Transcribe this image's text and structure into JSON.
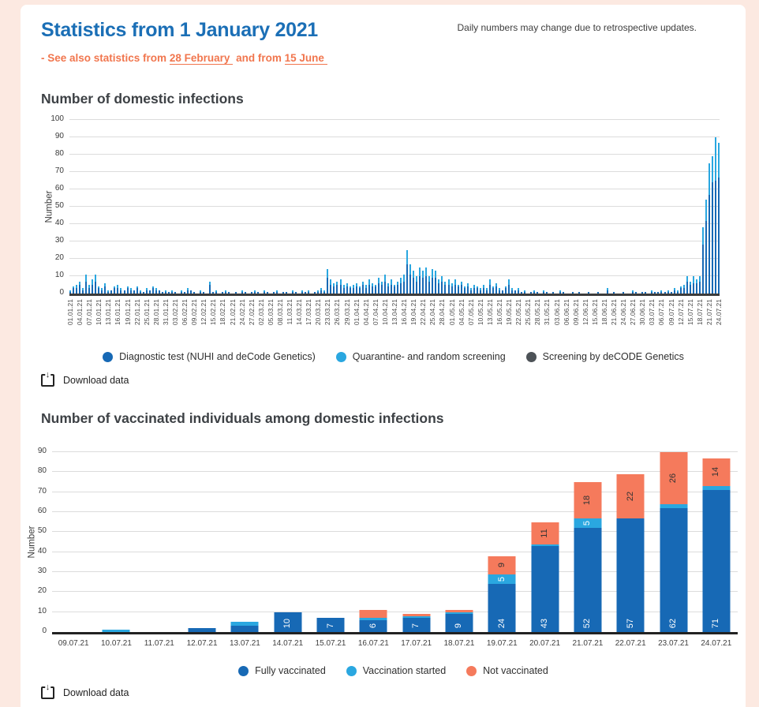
{
  "page": {
    "title": "Statistics from 1 January 2021",
    "note": "Daily numbers may change due to retrospective updates.",
    "subtitle_prefix": "- See also statistics from ",
    "link1": "28 February",
    "subtitle_mid": " and from ",
    "link2": "15 June",
    "download_label": "Download data"
  },
  "colors": {
    "page_background": "#fce9e1",
    "title_blue": "#1b6fb6",
    "link_orange": "#f1764e",
    "bar_dark_blue": "#1769b5",
    "bar_light_blue": "#2aa7e0",
    "bar_gray": "#4d5257",
    "bar_orange": "#f57a5c"
  },
  "chart_data": [
    {
      "type": "bar",
      "title": "Number of domestic infections",
      "ylabel": "Number",
      "ylim": [
        0,
        100
      ],
      "yticks": [
        0,
        10,
        20,
        30,
        40,
        50,
        60,
        70,
        80,
        90,
        100
      ],
      "grid": true,
      "legend_position": "bottom",
      "x_start": "01.01.21",
      "x_end": "24.07.21",
      "x_tick_labels": [
        "01.01.21",
        "04.01.21",
        "07.01.21",
        "10.01.21",
        "13.01.21",
        "16.01.21",
        "19.01.21",
        "22.01.21",
        "25.01.21",
        "28.01.21",
        "31.01.21",
        "03.02.21",
        "06.02.21",
        "09.02.21",
        "12.02.21",
        "15.02.21",
        "18.02.21",
        "21.02.21",
        "24.02.21",
        "27.02.21",
        "02.03.21",
        "05.03.21",
        "08.03.21",
        "11.03.21",
        "14.03.21",
        "17.03.21",
        "20.03.21",
        "23.03.21",
        "26.03.21",
        "29.03.21",
        "01.04.21",
        "04.04.21",
        "07.04.21",
        "10.04.21",
        "13.04.21",
        "16.04.21",
        "19.04.21",
        "22.04.21",
        "25.04.21",
        "28.04.21",
        "01.05.21",
        "04.05.21",
        "07.05.21",
        "10.05.21",
        "13.05.21",
        "16.05.21",
        "19.05.21",
        "22.05.21",
        "25.05.21",
        "28.05.21",
        "31.05.21",
        "03.06.21",
        "06.06.21",
        "09.06.21",
        "12.06.21",
        "15.06.21",
        "18.06.21",
        "21.06.21",
        "24.06.21",
        "27.06.21",
        "30.06.21",
        "03.07.21",
        "06.07.21",
        "09.07.21",
        "12.07.21",
        "15.07.21",
        "18.07.21",
        "21.07.21",
        "24.07.21"
      ],
      "series": [
        {
          "name": "Diagnostic test (NUHI and deCode Genetics)",
          "color": "#1769b5",
          "values": [
            1,
            3,
            3,
            5,
            2,
            7,
            3,
            5,
            7,
            3,
            2,
            4,
            1,
            2,
            3,
            3,
            2,
            2,
            3,
            2,
            2,
            3,
            1,
            1,
            2,
            2,
            3,
            2,
            2,
            1,
            1,
            1,
            1,
            1,
            0,
            1,
            1,
            2,
            2,
            1,
            0,
            1,
            1,
            0,
            5,
            1,
            1,
            0,
            1,
            1,
            1,
            0,
            1,
            0,
            1,
            1,
            0,
            1,
            1,
            1,
            0,
            1,
            1,
            0,
            1,
            1,
            0,
            1,
            1,
            0,
            1,
            1,
            0,
            1,
            1,
            1,
            0,
            1,
            1,
            2,
            1,
            9,
            5,
            4,
            5,
            5,
            3,
            4,
            3,
            3,
            4,
            3,
            5,
            3,
            5,
            4,
            4,
            6,
            5,
            7,
            4,
            5,
            4,
            5,
            6,
            7,
            17,
            11,
            9,
            7,
            10,
            9,
            10,
            7,
            9,
            9,
            6,
            7,
            5,
            5,
            4,
            5,
            4,
            5,
            3,
            4,
            2,
            3,
            3,
            2,
            3,
            2,
            5,
            3,
            4,
            2,
            2,
            3,
            5,
            2,
            2,
            2,
            1,
            1,
            0,
            1,
            1,
            1,
            0,
            1,
            1,
            0,
            1,
            0,
            1,
            1,
            0,
            0,
            1,
            0,
            1,
            0,
            0,
            1,
            0,
            0,
            1,
            0,
            0,
            2,
            0,
            1,
            0,
            0,
            1,
            0,
            0,
            1,
            1,
            0,
            1,
            1,
            0,
            1,
            1,
            1,
            1,
            1,
            1,
            1,
            2,
            1,
            3,
            3,
            7,
            5,
            6,
            6,
            7,
            28,
            42,
            57,
            64,
            65,
            67
          ]
        },
        {
          "name": "Quarantine- and random screening",
          "color": "#2aa7e0",
          "values": [
            1,
            1,
            2,
            2,
            1,
            4,
            2,
            3,
            4,
            1,
            1,
            2,
            1,
            0,
            1,
            2,
            1,
            0,
            1,
            1,
            0,
            1,
            1,
            0,
            1,
            0,
            1,
            1,
            0,
            0,
            1,
            0,
            1,
            0,
            0,
            1,
            0,
            1,
            0,
            0,
            0,
            1,
            0,
            0,
            2,
            0,
            1,
            0,
            0,
            1,
            0,
            0,
            0,
            0,
            1,
            0,
            0,
            0,
            1,
            0,
            0,
            1,
            0,
            0,
            0,
            1,
            0,
            0,
            0,
            0,
            1,
            0,
            0,
            1,
            0,
            1,
            0,
            0,
            1,
            1,
            1,
            5,
            3,
            2,
            2,
            3,
            2,
            2,
            1,
            2,
            2,
            1,
            2,
            2,
            3,
            2,
            1,
            3,
            2,
            4,
            2,
            3,
            1,
            2,
            3,
            4,
            8,
            6,
            4,
            3,
            5,
            4,
            5,
            3,
            5,
            4,
            2,
            3,
            2,
            3,
            2,
            3,
            1,
            2,
            1,
            2,
            1,
            2,
            1,
            1,
            2,
            1,
            3,
            1,
            2,
            1,
            0,
            1,
            3,
            1,
            0,
            1,
            0,
            1,
            0,
            0,
            1,
            0,
            0,
            1,
            0,
            0,
            0,
            0,
            1,
            0,
            0,
            0,
            0,
            0,
            0,
            0,
            0,
            0,
            0,
            0,
            0,
            0,
            0,
            1,
            0,
            0,
            0,
            0,
            0,
            0,
            0,
            1,
            0,
            0,
            0,
            0,
            0,
            1,
            0,
            0,
            1,
            0,
            1,
            0,
            1,
            1,
            1,
            2,
            3,
            2,
            4,
            2,
            3,
            10,
            12,
            18,
            15,
            25,
            20
          ]
        },
        {
          "name": "Screening by deCODE Genetics",
          "color": "#4d5257",
          "values": []
        }
      ]
    },
    {
      "type": "stacked_bar",
      "title": "Number of vaccinated individuals among domestic infections",
      "ylabel": "Number",
      "ylim": [
        0,
        90
      ],
      "yticks": [
        0,
        10,
        20,
        30,
        40,
        50,
        60,
        70,
        80,
        90
      ],
      "grid": true,
      "legend_position": "bottom",
      "label_min": 5,
      "categories": [
        "09.07.21",
        "10.07.21",
        "11.07.21",
        "12.07.21",
        "13.07.21",
        "14.07.21",
        "15.07.21",
        "16.07.21",
        "17.07.21",
        "18.07.21",
        "19.07.21",
        "20.07.21",
        "21.07.21",
        "22.07.21",
        "23.07.21",
        "24.07.21"
      ],
      "series": [
        {
          "name": "Fully vaccinated",
          "color": "#1769b5",
          "label_color": "#ffffff",
          "label_pos": "bottom",
          "values": [
            0,
            0,
            0,
            2,
            3,
            10,
            7,
            6,
            7,
            9,
            24,
            43,
            52,
            57,
            62,
            71
          ]
        },
        {
          "name": "Vaccination started",
          "color": "#2aa7e0",
          "label_color": "#ffffff",
          "label_pos": "center",
          "values": [
            0,
            1,
            0,
            0,
            2,
            0,
            0,
            1,
            1,
            1,
            5,
            1,
            5,
            0,
            2,
            2
          ]
        },
        {
          "name": "Not vaccinated",
          "color": "#f57a5c",
          "label_color": "#333333",
          "label_pos": "center",
          "values": [
            0,
            0,
            0,
            0,
            0,
            0,
            0,
            4,
            1,
            1,
            9,
            11,
            18,
            22,
            26,
            14
          ]
        }
      ]
    }
  ]
}
